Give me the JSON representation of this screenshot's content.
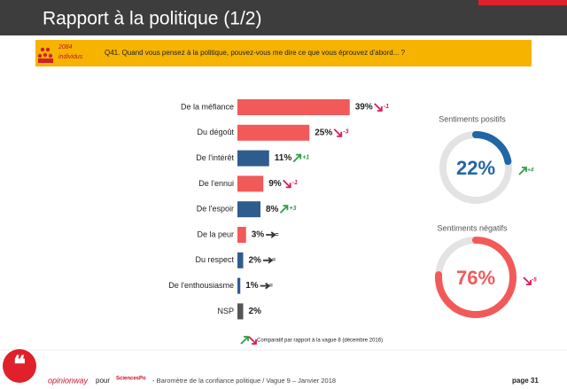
{
  "header": {
    "title": "Rapport à la politique (1/2)"
  },
  "sample": {
    "count": "2084",
    "unit": "individus"
  },
  "question": "Q41. Quand vous pensez à la politique, pouvez-vous me dire ce que vous éprouvez d'abord... ?",
  "trend_colors": {
    "up": "#2f9e48",
    "down": "#d81b5a",
    "flat": "#333333"
  },
  "chart_data": [
    {
      "type": "bar",
      "orientation": "horizontal",
      "categories": [
        "De la méfiance",
        "Du dégoût",
        "De l'intérêt",
        "De l'ennui",
        "De l'espoir",
        "De la peur",
        "Du respect",
        "De l'enthousiasme",
        "NSP"
      ],
      "values": [
        39,
        25,
        11,
        9,
        8,
        3,
        2,
        1,
        2
      ],
      "value_labels": [
        "39%",
        "25%",
        "11%",
        "9%",
        "8%",
        "3%",
        "2%",
        "1%",
        "2%"
      ],
      "colors": [
        "#f25a5a",
        "#f25a5a",
        "#2f5c8f",
        "#f25a5a",
        "#2f5c8f",
        "#f25a5a",
        "#2f5c8f",
        "#2f5c8f",
        "#555555"
      ],
      "changes": [
        "-1",
        "-3",
        "+1",
        "-1",
        "+3",
        "=",
        "=",
        "=",
        null
      ],
      "trends": [
        "down",
        "down",
        "up",
        "down",
        "up",
        "flat",
        "flat",
        "flat",
        null
      ]
    },
    {
      "type": "donut",
      "title": "Sentiments positifs",
      "value": 22,
      "value_label": "22%",
      "color": "#2166a5",
      "track_color": "#e3e3e3",
      "change": "+4",
      "trend": "up"
    },
    {
      "type": "donut",
      "title": "Sentiments négatifs",
      "value": 76,
      "value_label": "76%",
      "color": "#f25a5a",
      "track_color": "#e3e3e3",
      "change": "-5",
      "trend": "down"
    }
  ],
  "legend_note": "Comparatif par rapport à la vague 8 (décembre 2016)",
  "footer": {
    "brand": "opinionway",
    "pour": "pour",
    "partner": "SciencesPo",
    "text": "- Baromètre de la confiance politique / Vague 9 – Janvier 2018",
    "page": "page 31"
  }
}
